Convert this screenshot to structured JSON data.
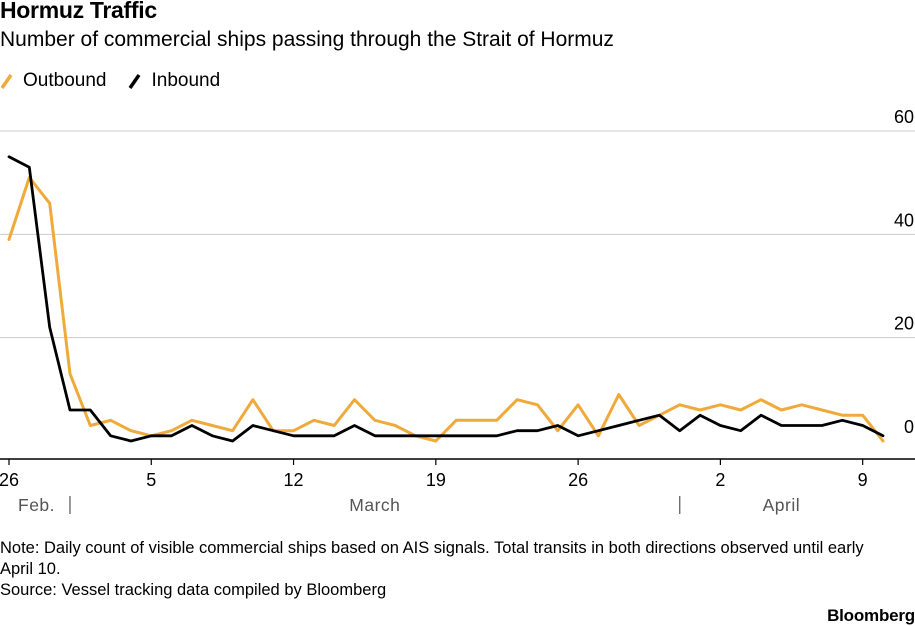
{
  "chart_data": {
    "type": "line",
    "title": "Hormuz Traffic",
    "subtitle": "Number of commercial ships passing through the Strait of Hormuz",
    "legend_position": "top-left",
    "grid": true,
    "x": [
      "2026-02-26",
      "2026-02-27",
      "2026-02-28",
      "2026-03-01",
      "2026-03-02",
      "2026-03-03",
      "2026-03-04",
      "2026-03-05",
      "2026-03-06",
      "2026-03-07",
      "2026-03-08",
      "2026-03-09",
      "2026-03-10",
      "2026-03-11",
      "2026-03-12",
      "2026-03-13",
      "2026-03-14",
      "2026-03-15",
      "2026-03-16",
      "2026-03-17",
      "2026-03-18",
      "2026-03-19",
      "2026-03-20",
      "2026-03-21",
      "2026-03-22",
      "2026-03-23",
      "2026-03-24",
      "2026-03-25",
      "2026-03-26",
      "2026-03-27",
      "2026-03-28",
      "2026-03-29",
      "2026-03-30",
      "2026-03-31",
      "2026-04-01",
      "2026-04-02",
      "2026-04-03",
      "2026-04-04",
      "2026-04-05",
      "2026-04-06",
      "2026-04-07",
      "2026-04-08",
      "2026-04-09",
      "2026-04-10"
    ],
    "series": [
      {
        "name": "Outbound",
        "color": "#f0a93b",
        "values": [
          39,
          51,
          46,
          13,
          3,
          4,
          2,
          1,
          2,
          4,
          3,
          2,
          8,
          2,
          2,
          4,
          3,
          8,
          4,
          3,
          1,
          0,
          4,
          4,
          4,
          8,
          7,
          2,
          7,
          1,
          9,
          3,
          5,
          7,
          6,
          7,
          6,
          8,
          6,
          7,
          6,
          5,
          5,
          0
        ]
      },
      {
        "name": "Inbound",
        "color": "#000000",
        "values": [
          55,
          53,
          22,
          6,
          6,
          1,
          0,
          1,
          1,
          3,
          1,
          0,
          3,
          2,
          1,
          1,
          1,
          3,
          1,
          1,
          1,
          1,
          1,
          1,
          1,
          2,
          2,
          3,
          1,
          2,
          3,
          4,
          5,
          2,
          5,
          3,
          2,
          5,
          3,
          3,
          3,
          4,
          3,
          1
        ]
      }
    ],
    "ylim": [
      -3,
      60
    ],
    "y_ticks": [
      0,
      20,
      40,
      60
    ],
    "y_tick_labels": [
      "0",
      "20",
      "40",
      "60"
    ],
    "x_ticks": [
      {
        "date": "2026-02-26",
        "label": "26"
      },
      {
        "date": "2026-03-05",
        "label": "5"
      },
      {
        "date": "2026-03-12",
        "label": "12"
      },
      {
        "date": "2026-03-19",
        "label": "19"
      },
      {
        "date": "2026-03-26",
        "label": "26"
      },
      {
        "date": "2026-04-02",
        "label": "2"
      },
      {
        "date": "2026-04-09",
        "label": "9"
      }
    ],
    "month_labels": [
      {
        "label": "Feb.",
        "start": "2026-02-26",
        "end": "2026-02-29"
      },
      {
        "label": "March",
        "start": "2026-02-29",
        "end": "2026-03-31"
      },
      {
        "label": "April",
        "start": "2026-03-31",
        "end": "2026-04-10"
      }
    ],
    "month_dividers": [
      "2026-02-29",
      "2026-03-31"
    ]
  },
  "notes": {
    "note": "Note: Daily count of visible commercial ships based on AIS signals. Total transits in both directions observed until early April 10.",
    "source": "Source: Vessel tracking data compiled by Bloomberg"
  },
  "branding": {
    "logo": "Bloomberg"
  },
  "colors": {
    "outbound": "#f0a93b",
    "inbound": "#000000",
    "grid": "#cccccc",
    "axis": "#000000",
    "tick_text": "#555555"
  }
}
